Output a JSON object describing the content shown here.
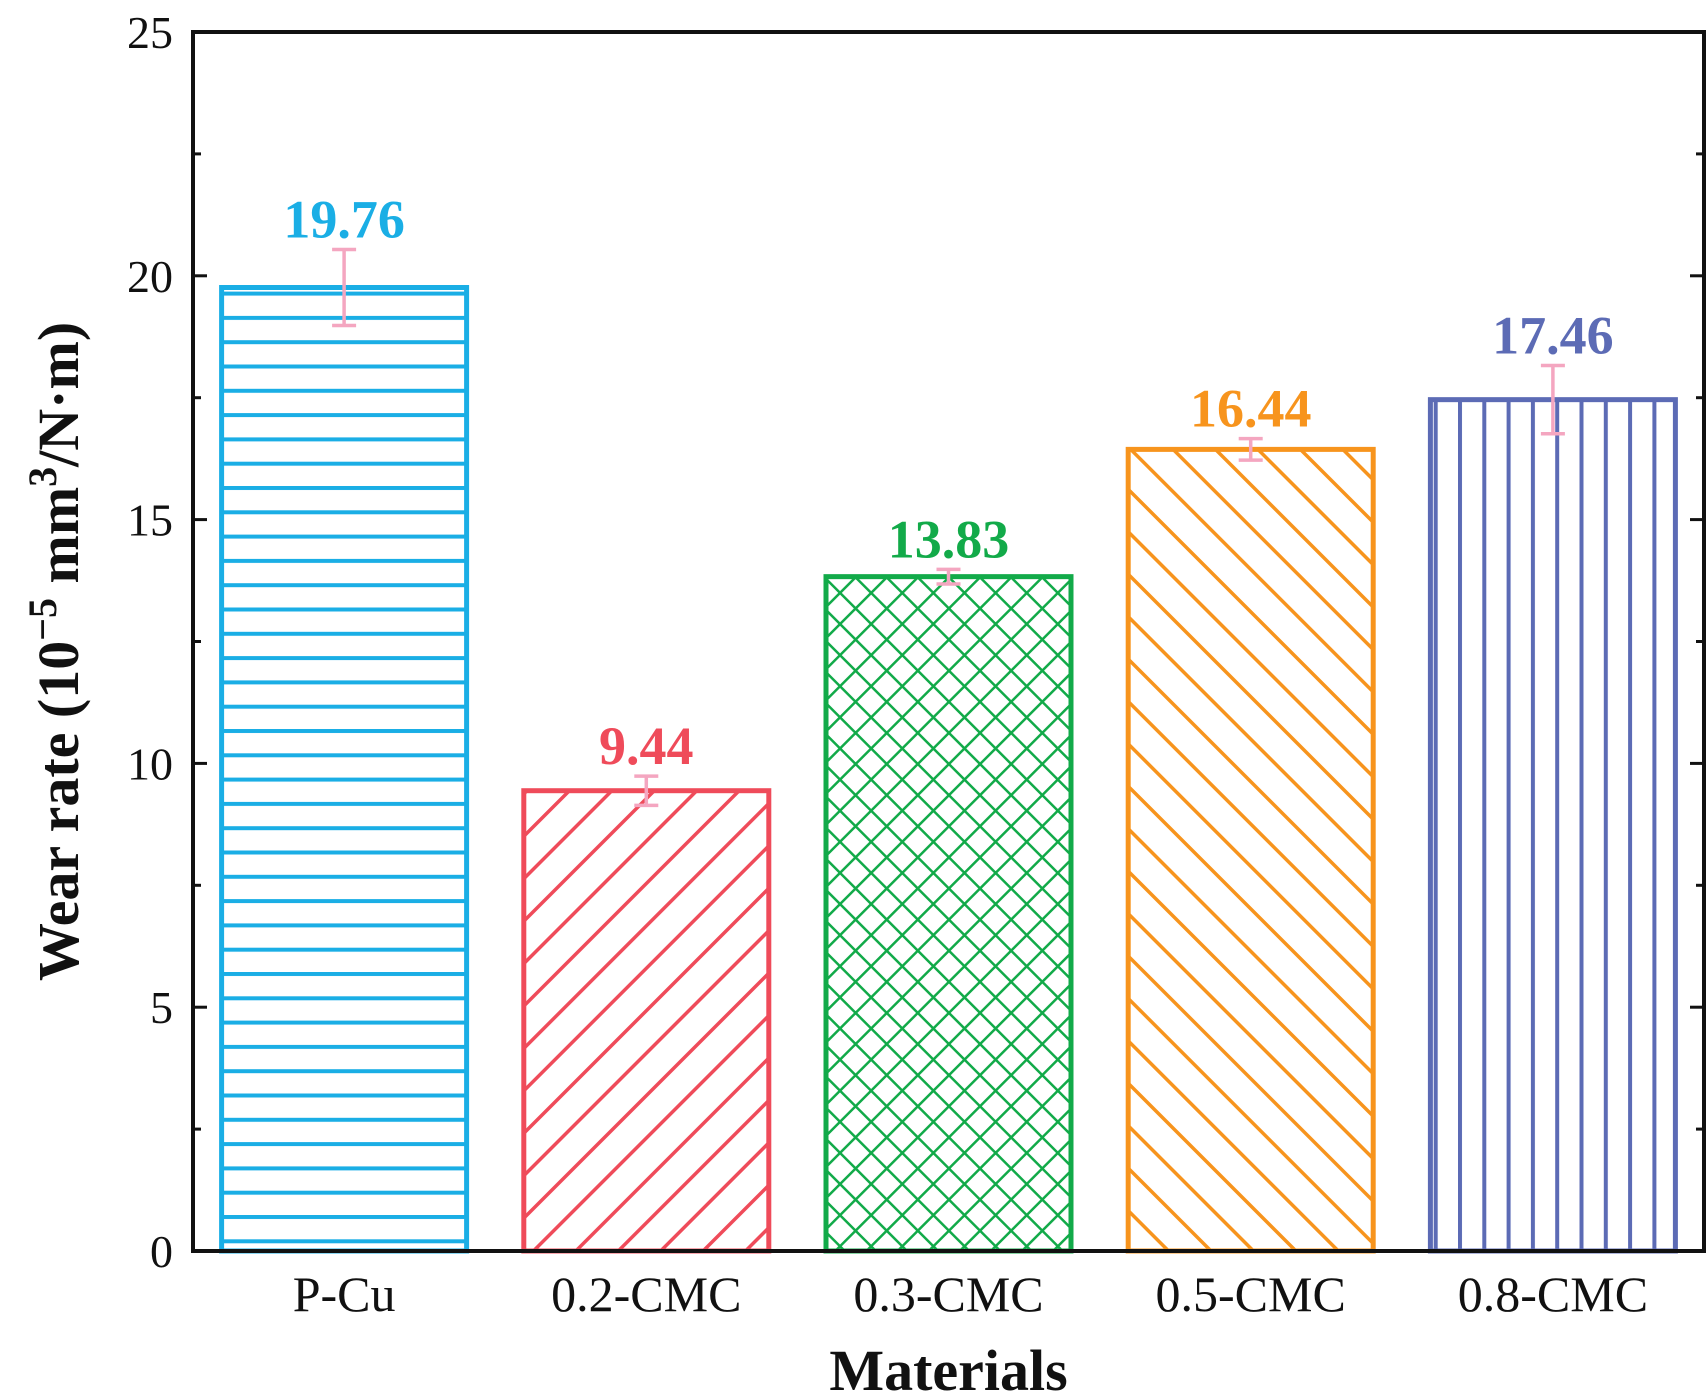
{
  "chart_data": {
    "type": "bar",
    "xlabel": "Materials",
    "ylabel": {
      "prefix": "Wear rate (10",
      "exp1": "−5",
      "mid": " mm",
      "exp2": "3",
      "suffix": "/N·m)"
    },
    "ylim": [
      0,
      25
    ],
    "yticks": [
      0,
      5,
      10,
      15,
      20,
      25
    ],
    "y_minor_step": 2.5,
    "grid": false,
    "categories": [
      "P-Cu",
      "0.2-CMC",
      "0.3-CMC",
      "0.5-CMC",
      "0.8-CMC"
    ],
    "values": [
      19.76,
      9.44,
      13.83,
      16.44,
      17.46
    ],
    "value_labels": [
      "19.76",
      "9.44",
      "13.83",
      "16.44",
      "17.46"
    ],
    "errors": [
      0.78,
      0.3,
      0.15,
      0.22,
      0.7
    ],
    "colors": [
      "#1aaee5",
      "#ef4b5a",
      "#12aa49",
      "#f7941d",
      "#5c6bb5"
    ],
    "patterns": [
      "horizontal",
      "diagonal-up",
      "crosshatch",
      "diagonal-down",
      "vertical"
    ],
    "error_bar_color": "#f4a6c0"
  }
}
